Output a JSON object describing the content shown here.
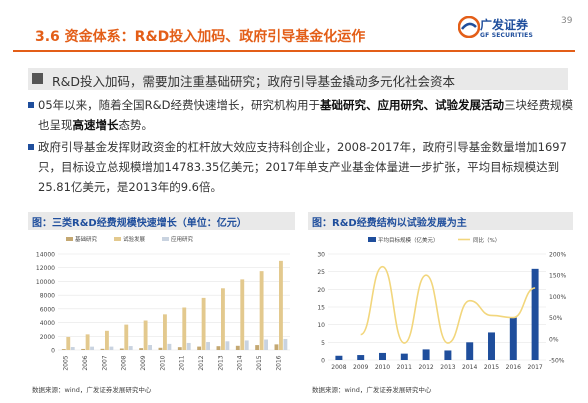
{
  "header": {
    "title": "3.6 资金体系：R&D投入加码、政府引导基金化运作",
    "page_number": "39",
    "logo_cn": "广发证券",
    "logo_en": "GF SECURITIES"
  },
  "subhead": "R&D投入加码，需要加注重基础研究；政府引导基金撬动多元化社会资本",
  "paragraph1": {
    "pre": "05年以来，随着全国R&D经费快速增长，研究机构用于",
    "bold1": "基础研究、应用研究、试验发展活动",
    "mid": "三块经费规模也呈现",
    "bold2": "高速增长",
    "post": "态势。"
  },
  "paragraph2": "政府引导基金发挥财政资金的杠杆放大效应支持科创企业，2008-2017年，政府引导基金数量增加1697只，目标设立总规模增加14783.35亿美元；2017年单支产业基金体量进一步扩张，平均目标规模达到25.81亿美元，是2013年的9.6倍。",
  "left_caption": "图：三类R&D经费规模快速增长（单位：亿元）",
  "right_caption": "图：R&D经费结构以试验发展为主",
  "left_source": "数据来源：wind，广发证券发展研究中心",
  "right_source": "数据来源：wind，广发证券发展研究中心",
  "colors": {
    "accent": "#e35e18",
    "brand": "#1f4e9c",
    "bar_basic": "#c4a872",
    "bar_exp": "#e3c98e",
    "bar_applied": "#c9d3e0",
    "line": "#f2d67c"
  },
  "chart_data": [
    {
      "type": "bar",
      "categories": [
        "2005",
        "2006",
        "2007",
        "2008",
        "2009",
        "2010",
        "2011",
        "2012",
        "2013",
        "2014",
        "2015",
        "2016"
      ],
      "legend": [
        "基础研究",
        "试验发展",
        "应用研究"
      ],
      "series": [
        {
          "name": "基础研究",
          "values": [
            131,
            155,
            174,
            220,
            270,
            324,
            412,
            499,
            555,
            613,
            716,
            822
          ]
        },
        {
          "name": "试验发展",
          "values": [
            1900,
            2280,
            2800,
            3700,
            4300,
            5200,
            6200,
            7600,
            9000,
            10300,
            11500,
            13000
          ]
        },
        {
          "name": "应用研究",
          "values": [
            433,
            489,
            492,
            575,
            730,
            893,
            1028,
            1162,
            1269,
            1398,
            1528,
            1610
          ]
        }
      ],
      "ylim": [
        0,
        14000
      ],
      "yticks": [
        0,
        2000,
        4000,
        6000,
        8000,
        10000,
        12000,
        14000
      ]
    },
    {
      "type": "bar",
      "categories": [
        "2008",
        "2009",
        "2010",
        "2011",
        "2012",
        "2013",
        "2014",
        "2015",
        "2016",
        "2017"
      ],
      "legend": [
        "平均目标规模（亿美元）",
        "同比（%）"
      ],
      "series": [
        {
          "name": "平均目标规模（亿美元）",
          "values": [
            1.2,
            1.4,
            2.0,
            1.8,
            3.0,
            2.7,
            5.0,
            7.8,
            12.0,
            25.8
          ]
        },
        {
          "name": "同比（%）",
          "values": [
            null,
            10,
            170,
            -10,
            150,
            -10,
            90,
            55,
            50,
            120
          ]
        }
      ],
      "ylim": [
        0,
        30
      ],
      "yticks": [
        0,
        5,
        10,
        15,
        20,
        25,
        30
      ],
      "y2lim": [
        -50,
        200
      ],
      "y2ticks": [
        -50,
        0,
        50,
        100,
        150,
        200
      ]
    }
  ]
}
